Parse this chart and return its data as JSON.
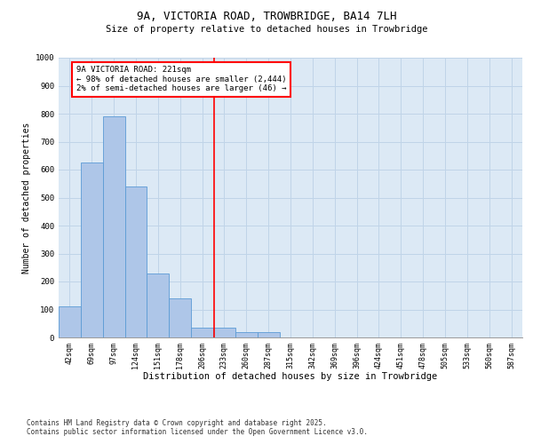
{
  "title": "9A, VICTORIA ROAD, TROWBRIDGE, BA14 7LH",
  "subtitle": "Size of property relative to detached houses in Trowbridge",
  "xlabel": "Distribution of detached houses by size in Trowbridge",
  "ylabel": "Number of detached properties",
  "bin_labels": [
    "42sqm",
    "69sqm",
    "97sqm",
    "124sqm",
    "151sqm",
    "178sqm",
    "206sqm",
    "233sqm",
    "260sqm",
    "287sqm",
    "315sqm",
    "342sqm",
    "369sqm",
    "396sqm",
    "424sqm",
    "451sqm",
    "478sqm",
    "505sqm",
    "533sqm",
    "560sqm",
    "587sqm"
  ],
  "bar_values": [
    110,
    625,
    790,
    540,
    230,
    140,
    35,
    35,
    20,
    20,
    0,
    0,
    0,
    0,
    0,
    0,
    0,
    0,
    0,
    0,
    0
  ],
  "bar_color": "#aec6e8",
  "bar_edge_color": "#5b9bd5",
  "grid_color": "#c0d4e8",
  "bg_color": "#dce9f5",
  "annotation_line1": "9A VICTORIA ROAD: 221sqm",
  "annotation_line2": "← 98% of detached houses are smaller (2,444)",
  "annotation_line3": "2% of semi-detached houses are larger (46) →",
  "ylim": [
    0,
    1000
  ],
  "yticks": [
    0,
    100,
    200,
    300,
    400,
    500,
    600,
    700,
    800,
    900,
    1000
  ],
  "footnote1": "Contains HM Land Registry data © Crown copyright and database right 2025.",
  "footnote2": "Contains public sector information licensed under the Open Government Licence v3.0.",
  "title_fontsize": 9,
  "subtitle_fontsize": 7.5,
  "axis_label_fontsize": 7,
  "tick_fontsize": 6,
  "annotation_fontsize": 6.5,
  "footnote_fontsize": 5.5
}
